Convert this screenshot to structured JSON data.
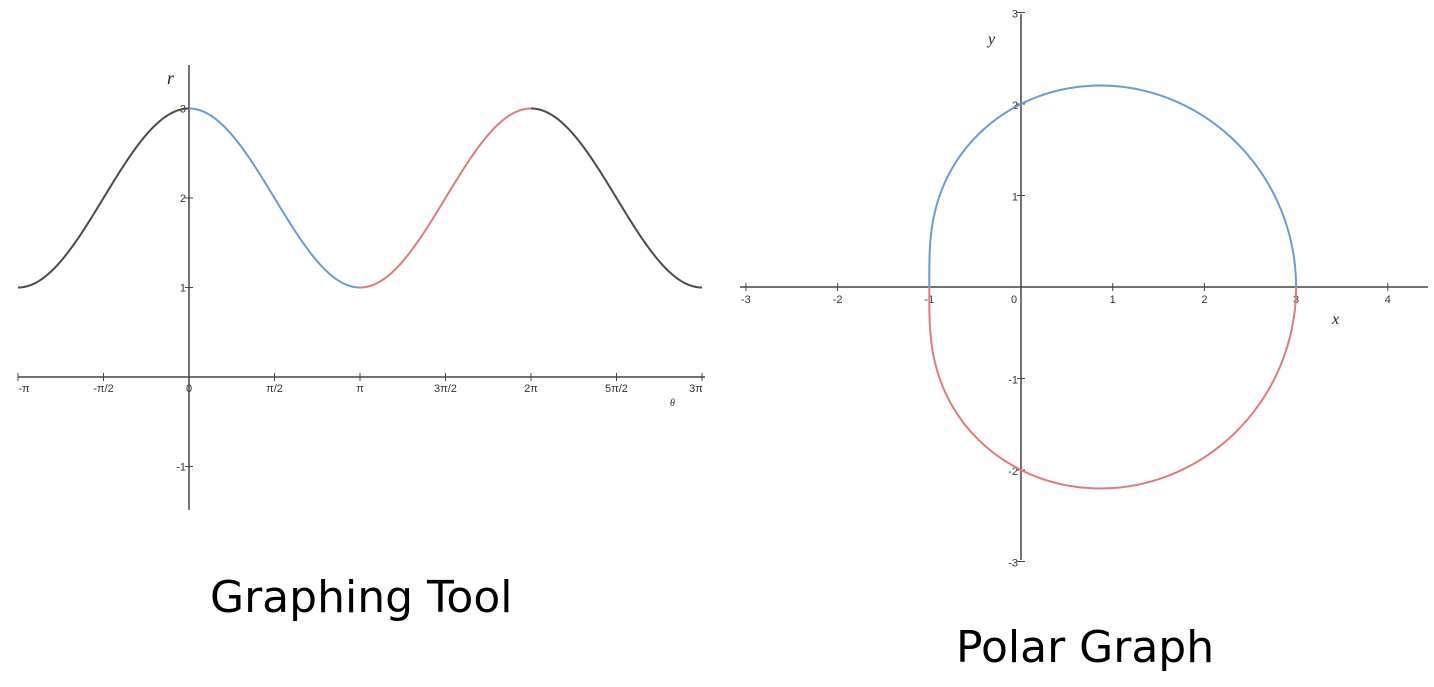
{
  "chart_data": [
    {
      "type": "line",
      "title": "Graphing Tool",
      "xlabel": "θ",
      "ylabel": "r",
      "function": "r = 2 + cos θ",
      "xlim": [
        -3.14159,
        9.42478
      ],
      "ylim": [
        -1.5,
        3.5
      ],
      "x_ticks": [
        {
          "value": -3.14159,
          "label": "-π"
        },
        {
          "value": -1.5708,
          "label": "-π/2"
        },
        {
          "value": 0,
          "label": "0"
        },
        {
          "value": 1.5708,
          "label": "π/2"
        },
        {
          "value": 3.14159,
          "label": "π"
        },
        {
          "value": 4.71239,
          "label": "3π/2"
        },
        {
          "value": 6.28319,
          "label": "2π"
        },
        {
          "value": 7.85398,
          "label": "5π/2"
        },
        {
          "value": 9.42478,
          "label": "3π"
        }
      ],
      "y_ticks": [
        {
          "value": 3,
          "label": "3"
        },
        {
          "value": 2,
          "label": "2"
        },
        {
          "value": 1,
          "label": "1"
        },
        {
          "value": -1,
          "label": "-1"
        }
      ],
      "grid": false,
      "series": [
        {
          "theta_range": [
            -3.14159,
            0
          ],
          "color": "#4a4a4a"
        },
        {
          "theta_range": [
            0,
            3.14159
          ],
          "color": "#6a9bd1"
        },
        {
          "theta_range": [
            3.14159,
            6.28319
          ],
          "color": "#e07b7b"
        },
        {
          "theta_range": [
            6.28319,
            9.42478
          ],
          "color": "#4a4a4a"
        }
      ]
    },
    {
      "type": "line",
      "title": "Polar Graph",
      "xlabel": "x",
      "ylabel": "y",
      "function": "r = 2 + cos θ",
      "xlim": [
        -3,
        4.4
      ],
      "ylim": [
        -3,
        3
      ],
      "x_ticks": [
        {
          "value": -3,
          "label": "-3"
        },
        {
          "value": -2,
          "label": "-2"
        },
        {
          "value": -1,
          "label": "-1"
        },
        {
          "value": 0,
          "label": "0"
        },
        {
          "value": 1,
          "label": "1"
        },
        {
          "value": 2,
          "label": "2"
        },
        {
          "value": 3,
          "label": "3"
        },
        {
          "value": 4,
          "label": "4"
        }
      ],
      "y_ticks": [
        {
          "value": 3,
          "label": "3"
        },
        {
          "value": 2,
          "label": "2"
        },
        {
          "value": 1,
          "label": "1"
        },
        {
          "value": -1,
          "label": "-1"
        },
        {
          "value": -2,
          "label": "-2"
        },
        {
          "value": -3,
          "label": "-3"
        }
      ],
      "grid": false,
      "series": [
        {
          "theta_range": [
            0,
            3.14159
          ],
          "color": "#6a9bd1"
        },
        {
          "theta_range": [
            3.14159,
            6.28319
          ],
          "color": "#e07b7b"
        }
      ]
    }
  ]
}
